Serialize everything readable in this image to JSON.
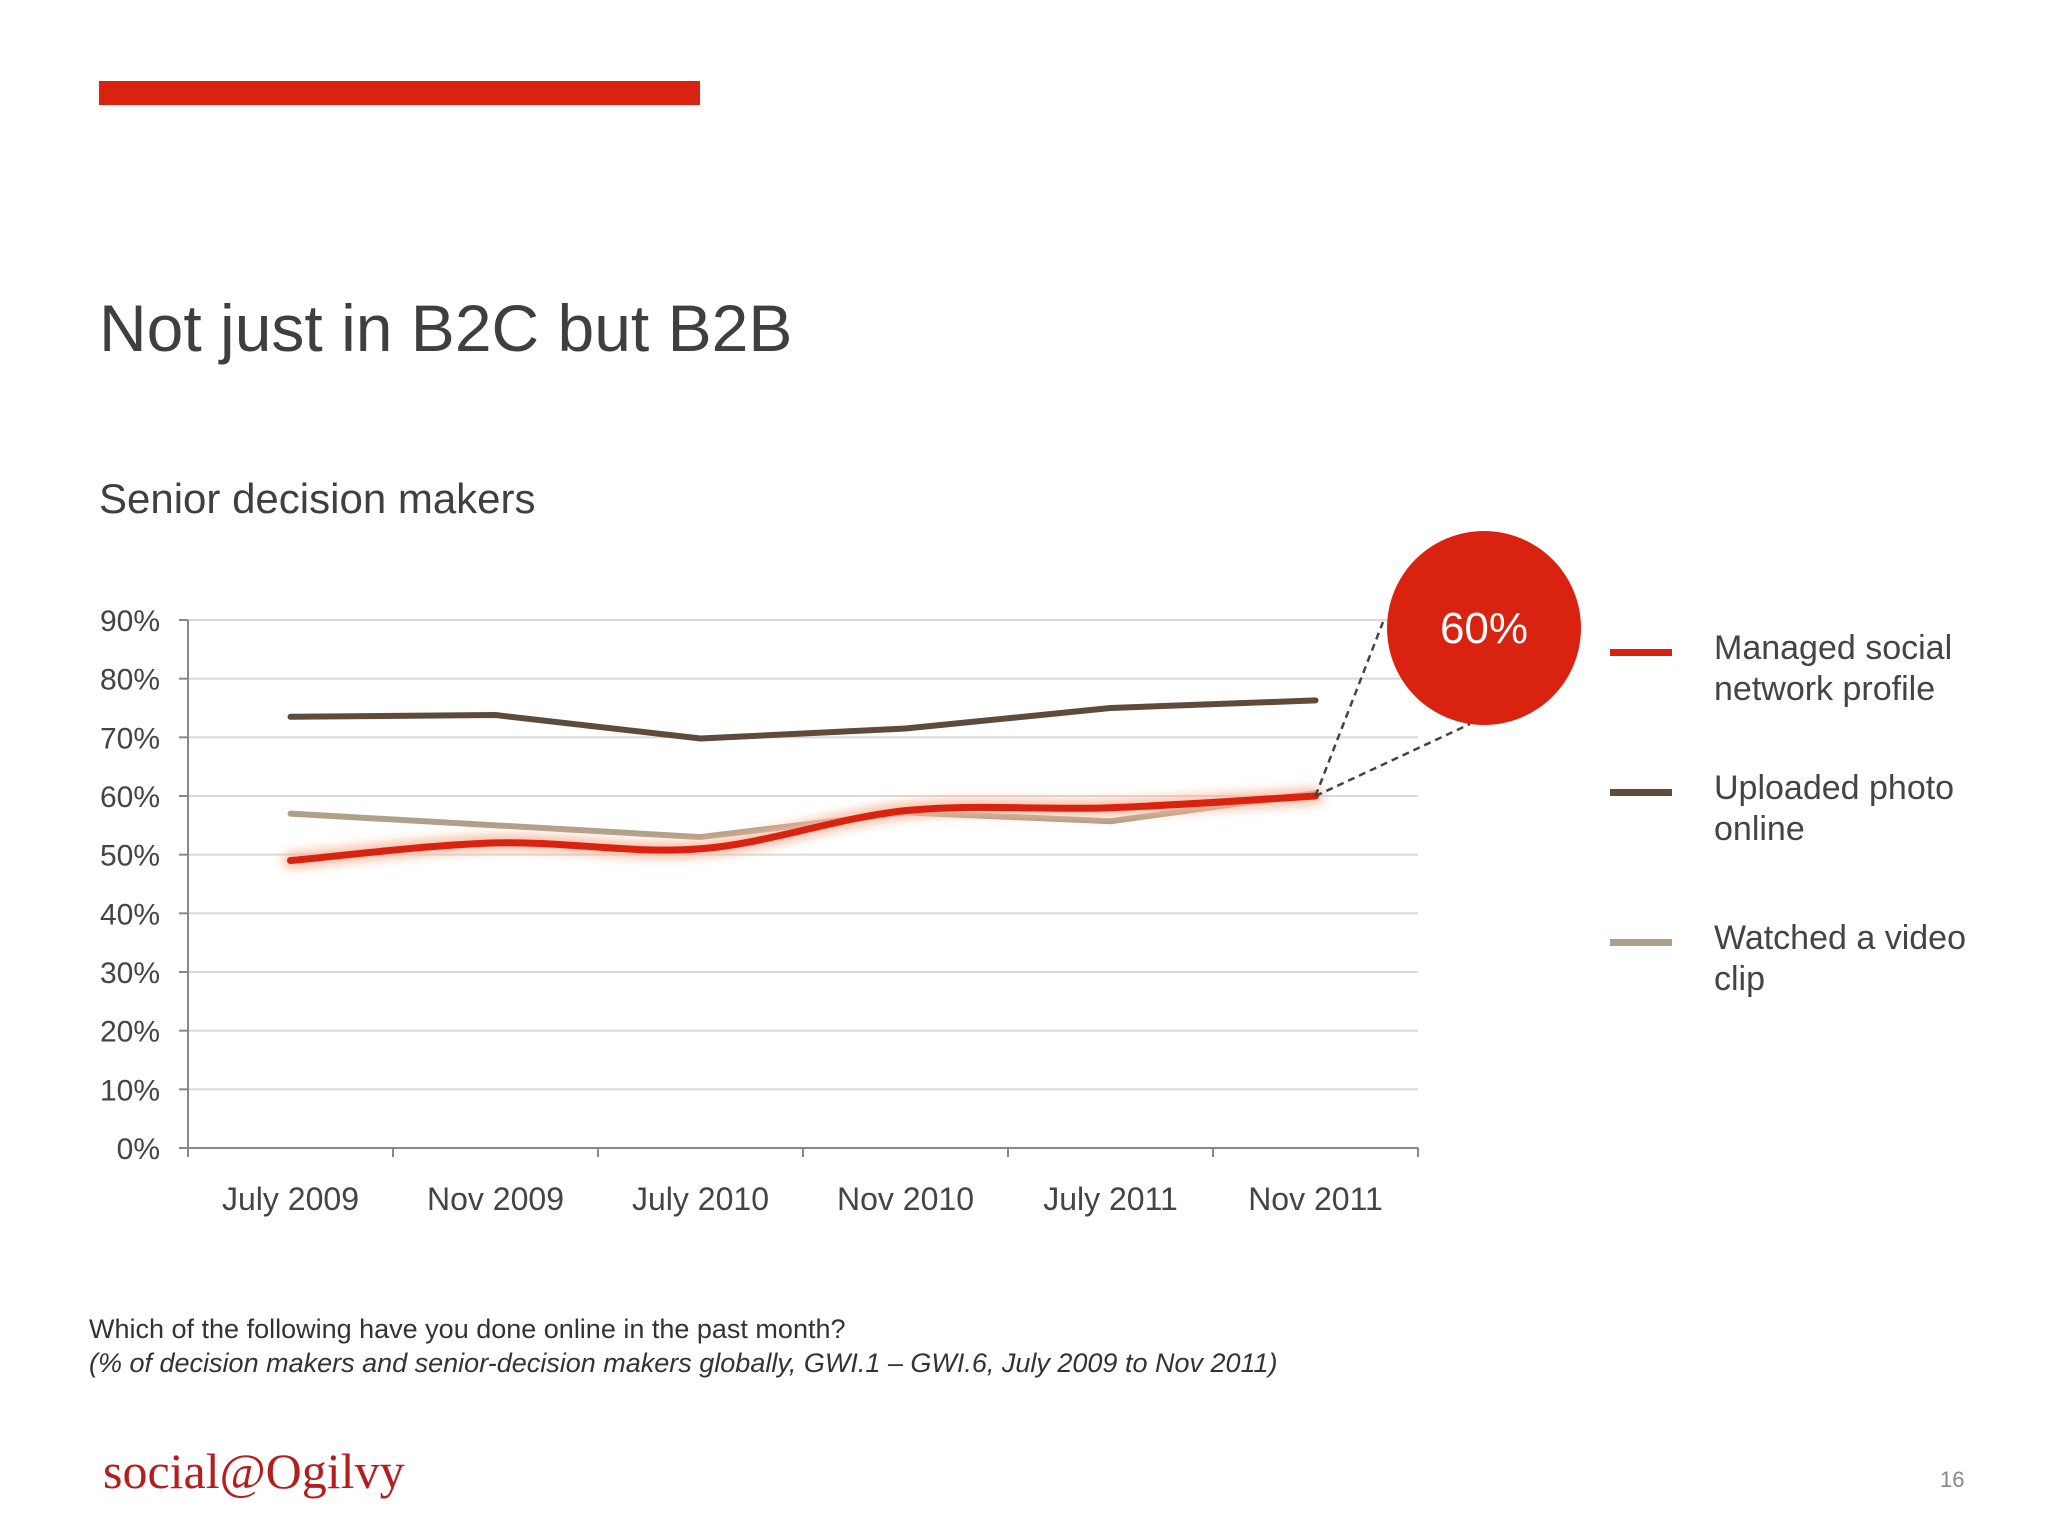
{
  "slide": {
    "title": "Not just in B2C but B2B",
    "subtitle": "Senior decision makers",
    "question": "Which of the following have you done online in the past month?",
    "source": "(% of decision makers and senior-decision makers globally, GWI.1 – GWI.6, July 2009 to Nov 2011)",
    "logo_text": "social@Ogilvy",
    "page_number": "16",
    "accent_color": "#d92310"
  },
  "chart_data": {
    "type": "line",
    "categories": [
      "July 2009",
      "Nov 2009",
      "July 2010",
      "Nov 2010",
      "July 2011",
      "Nov 2011"
    ],
    "y_ticks": [
      "0%",
      "10%",
      "20%",
      "30%",
      "40%",
      "50%",
      "60%",
      "70%",
      "80%",
      "90%"
    ],
    "ylim": [
      0,
      90
    ],
    "grid": true,
    "legend_position": "right",
    "series": [
      {
        "name": "Managed social network profile",
        "values": [
          49,
          52,
          51,
          57.5,
          58,
          60
        ],
        "color": "#d92310",
        "highlight": true
      },
      {
        "name": "Uploaded photo online",
        "values": [
          73.5,
          73.8,
          69.8,
          71.5,
          75,
          76.3
        ],
        "color": "#5e4b3c"
      },
      {
        "name": "Watched a video clip",
        "values": [
          57,
          55,
          53,
          57.2,
          55.7,
          60.5
        ],
        "color": "#b0a089"
      }
    ],
    "callout": {
      "text": "60%",
      "series_index": 0,
      "point_index": 5,
      "color": "#d92310"
    }
  }
}
